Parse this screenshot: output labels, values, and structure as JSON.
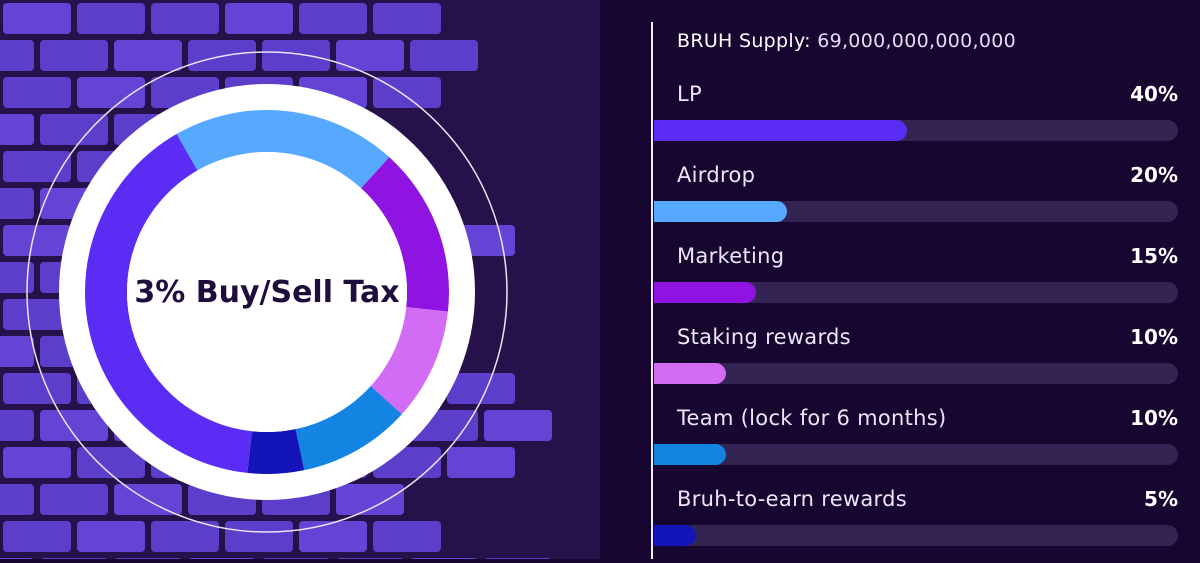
{
  "chart_data": [
    {
      "type": "pie",
      "title": "3% Buy/Sell Tax",
      "categories": [
        "LP",
        "Airdrop",
        "Marketing",
        "Staking rewards",
        "Team (lock for 6 months)",
        "Bruh-to-earn rewards"
      ],
      "values": [
        40,
        20,
        15,
        10,
        10,
        5
      ],
      "colors": [
        "#5a2cf4",
        "#56a9ff",
        "#8f14e2",
        "#d36cf5",
        "#1384e2",
        "#1315b9"
      ]
    },
    {
      "type": "bar",
      "orientation": "horizontal",
      "title": "BRUH Supply: 69,000,000,000,000",
      "categories": [
        "LP",
        "Airdrop",
        "Marketing",
        "Staking rewards",
        "Team (lock for 6 months)",
        "Bruh-to-earn rewards"
      ],
      "values": [
        40,
        20,
        15,
        10,
        10,
        5
      ],
      "labels": [
        "40%",
        "20%",
        "15%",
        "10%",
        "10%",
        "5%"
      ],
      "xlim": [
        0,
        100
      ],
      "colors": [
        "#5a2cf4",
        "#56a9ff",
        "#8f14e2",
        "#d36cf5",
        "#1384e2",
        "#1315b9"
      ]
    }
  ],
  "donut_label": "3% Buy/Sell Tax",
  "supply_label": "BRUH Supply:",
  "supply_value": "69,000,000,000,000",
  "allocations": [
    {
      "name": "LP",
      "pct": "40%",
      "value": 40,
      "color": "#5a2cf4"
    },
    {
      "name": "Airdrop",
      "pct": "20%",
      "value": 20,
      "color": "#56a9ff"
    },
    {
      "name": "Marketing",
      "pct": "15%",
      "value": 15,
      "color": "#8f14e2"
    },
    {
      "name": "Staking rewards",
      "pct": "10%",
      "value": 10,
      "color": "#d36cf5"
    },
    {
      "name": "Team (lock for 6 months)",
      "pct": "10%",
      "value": 10,
      "color": "#1384e2"
    },
    {
      "name": "Bruh-to-earn rewards",
      "pct": "5%",
      "value": 5,
      "color": "#1315b9"
    }
  ],
  "colors": {
    "background": "#17062f",
    "brick": "#5b3ec9",
    "mortar": "#26114a",
    "track": "#342453"
  }
}
